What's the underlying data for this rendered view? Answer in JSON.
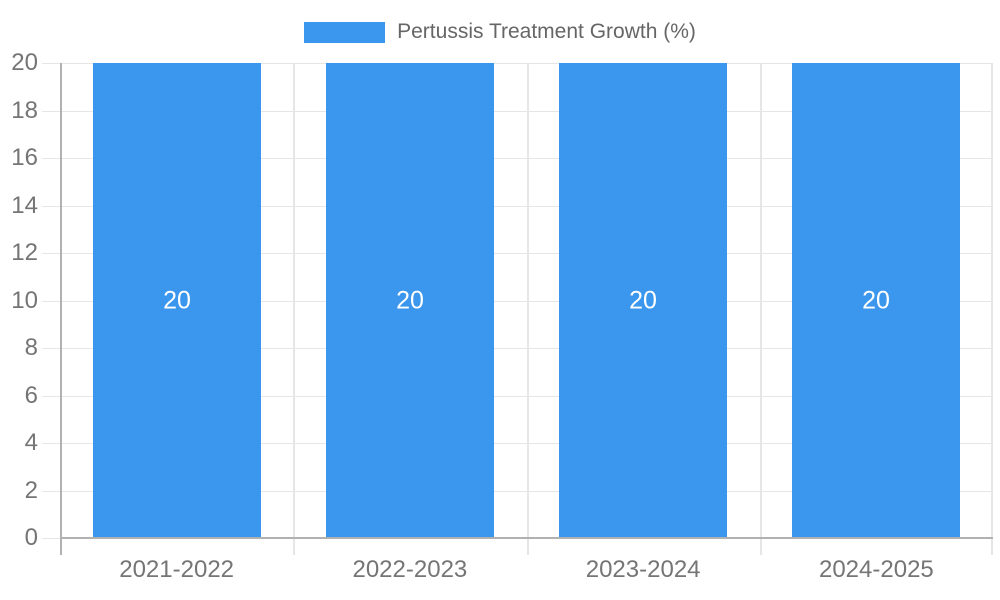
{
  "chart_data": {
    "type": "bar",
    "title": "Pertussis Treatment Growth (%)",
    "legend": {
      "label": "Pertussis Treatment Growth (%)",
      "position": "top"
    },
    "categories": [
      "2021-2022",
      "2022-2023",
      "2023-2024",
      "2024-2025"
    ],
    "series": [
      {
        "name": "Pertussis Treatment Growth (%)",
        "values": [
          20,
          20,
          20,
          20
        ]
      }
    ],
    "bar_value_labels": [
      "20",
      "20",
      "20",
      "20"
    ],
    "xlabel": "",
    "ylabel": "",
    "ylim": [
      0,
      20
    ],
    "ytick_step": 2,
    "yticks": [
      0,
      2,
      4,
      6,
      8,
      10,
      12,
      14,
      16,
      18,
      20
    ],
    "grid": true,
    "colors": {
      "bar": "#3B97ED",
      "grid": "#E6E6E6",
      "axis": "#B1B1B1",
      "tick_label": "#757575",
      "legend_label": "#666666",
      "bar_label": "#FFFFFF",
      "background": "#FFFFFF"
    }
  }
}
